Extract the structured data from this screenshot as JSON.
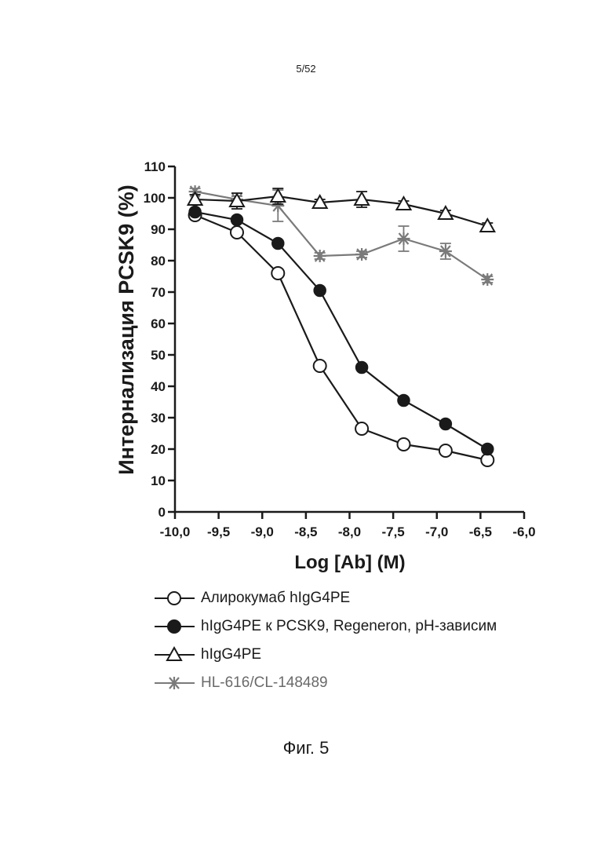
{
  "page_number": "5/52",
  "figure_caption": "Фиг. 5",
  "colors": {
    "black": "#1a1a1a",
    "grey": "#7a7a7a"
  },
  "chart_data": {
    "type": "line",
    "xlabel": "Log [Ab] (M)",
    "ylabel": "Интернализация PCSK9 (%)",
    "xlim": [
      -10.0,
      -6.0
    ],
    "ylim": [
      0,
      110
    ],
    "x_ticks": [
      -10.0,
      -9.5,
      -9.0,
      -8.5,
      -8.0,
      -7.5,
      -7.0,
      -6.5,
      -6.0
    ],
    "x_tick_labels": [
      "-10,0",
      "-9,5",
      "-9,0",
      "-8,5",
      "-8,0",
      "-7,5",
      "-7,0",
      "-6,5",
      "-6,0"
    ],
    "y_ticks": [
      0,
      10,
      20,
      30,
      40,
      50,
      60,
      70,
      80,
      90,
      100,
      110
    ],
    "y_tick_labels": [
      "0",
      "10",
      "20",
      "30",
      "40",
      "50",
      "60",
      "70",
      "80",
      "90",
      "100",
      "110"
    ],
    "grid": false,
    "legend_position": "below",
    "series": [
      {
        "name": "Алирокумаб hIgG4PE",
        "marker": "circle-open",
        "color": "#1a1a1a",
        "x": [
          -9.77,
          -9.29,
          -8.82,
          -8.34,
          -7.86,
          -7.38,
          -6.9,
          -6.42
        ],
        "y": [
          94.5,
          89,
          76,
          46.5,
          26.5,
          21.5,
          19.5,
          16.5
        ]
      },
      {
        "name": "hIgG4PE к PCSK9, Regeneron, pH-зависим",
        "marker": "circle-filled",
        "color": "#1a1a1a",
        "x": [
          -9.77,
          -9.29,
          -8.82,
          -8.34,
          -7.86,
          -7.38,
          -6.9,
          -6.42
        ],
        "y": [
          95.5,
          93,
          85.5,
          70.5,
          46,
          35.5,
          28,
          20
        ]
      },
      {
        "name": "hIgG4PE",
        "marker": "triangle-open",
        "color": "#1a1a1a",
        "x": [
          -9.77,
          -9.29,
          -8.82,
          -8.34,
          -7.86,
          -7.38,
          -6.9,
          -6.42
        ],
        "y": [
          99.5,
          99,
          100.5,
          98.5,
          99.5,
          98,
          95,
          91
        ],
        "error": [
          1.5,
          2.5,
          2.5,
          1,
          2.5,
          1,
          1,
          1
        ]
      },
      {
        "name": "HL-616/CL-148489",
        "marker": "asterisk",
        "color": "#7a7a7a",
        "x": [
          -9.77,
          -9.29,
          -8.82,
          -8.34,
          -7.86,
          -7.38,
          -6.9,
          -6.42
        ],
        "y": [
          102,
          99.5,
          97.5,
          81.5,
          82,
          87,
          83,
          74
        ],
        "error": [
          1,
          1,
          5,
          1,
          1,
          4,
          2.5,
          1
        ]
      }
    ]
  }
}
